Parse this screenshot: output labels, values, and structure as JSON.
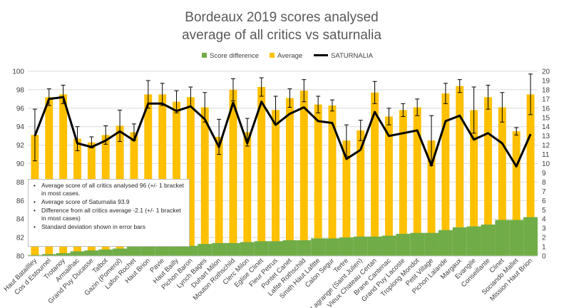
{
  "chart_data": {
    "type": "bar",
    "title_lines": [
      "Bordeaux 2019 scores analysed",
      "average of all critics vs saturnalia"
    ],
    "categories": [
      "Haut Bataillley",
      "Cos d Estournel",
      "Trotanoy",
      "Armailhac",
      "Grand Puy Ducasse",
      "Talbot",
      "Gazin (Pomerol)",
      "Lafon Rochet",
      "Haut Brion",
      "Pavie",
      "Haut Bailly",
      "Pichon Baron",
      "Lynch Bages",
      "Duhart Milon",
      "Mouton Rothschild",
      "Clerc Milon",
      "Eglise Clinet",
      "Fleur Petrus",
      "Pontet Canet",
      "Lafite Rothschild",
      "Smith Haut Lafitte",
      "Calon Segur",
      "Tertre",
      "Lagrange (Saint Julien)",
      "Vieux Chateau Certan",
      "Brane Cantenac",
      "Grand Puy Lacoste",
      "Troplong Mondot",
      "Petit Village",
      "Pichon Lalande",
      "Margaux",
      "Evangile",
      "Conseillante",
      "Clinet",
      "Sociando Mallet",
      "Mission Haut Brion"
    ],
    "series": [
      {
        "name": "Score difference",
        "axis": "right",
        "color": "#70AD47",
        "values": [
          0.1,
          0.2,
          0.3,
          0.5,
          0.6,
          0.7,
          0.8,
          1.0,
          1.0,
          1.0,
          1.1,
          1.1,
          1.3,
          1.4,
          1.4,
          1.5,
          1.6,
          1.6,
          1.7,
          1.7,
          1.9,
          1.9,
          2.0,
          2.1,
          2.1,
          2.2,
          2.4,
          2.5,
          2.5,
          2.8,
          3.1,
          3.2,
          3.4,
          3.9,
          3.9,
          4.2
        ]
      },
      {
        "name": "Average",
        "axis": "left",
        "color": "#FFC000",
        "values": [
          93.1,
          97.2,
          97.5,
          92.7,
          92.3,
          93.1,
          94.1,
          93.4,
          97.5,
          97.5,
          96.7,
          97.2,
          96.1,
          92.9,
          98.0,
          93.4,
          98.3,
          95.8,
          97.1,
          97.9,
          96.4,
          96.3,
          92.5,
          93.6,
          97.7,
          95.1,
          95.8,
          96.1,
          92.5,
          97.6,
          98.4,
          95.8,
          97.2,
          96.1,
          93.5,
          97.5
        ],
        "error": [
          2.8,
          0.9,
          1.0,
          1.3,
          0.6,
          1.0,
          1.7,
          0.9,
          1.5,
          1.2,
          1.2,
          1.1,
          1.6,
          1.9,
          1.2,
          1.5,
          1.0,
          1.5,
          1.0,
          1.2,
          0.9,
          0.6,
          1.7,
          1.1,
          1.2,
          0.9,
          0.7,
          0.9,
          2.7,
          1.1,
          0.7,
          2.5,
          1.3,
          1.6,
          0.4,
          2.2
        ]
      },
      {
        "name": "SATURNALIA",
        "axis": "right",
        "color": "#000000",
        "values": [
          13.0,
          17.0,
          17.2,
          12.2,
          11.8,
          12.5,
          13.5,
          12.5,
          16.5,
          16.5,
          15.7,
          16.2,
          14.8,
          11.8,
          16.6,
          12.2,
          16.7,
          14.2,
          15.4,
          16.1,
          14.6,
          14.4,
          10.5,
          11.5,
          15.6,
          13.0,
          13.3,
          13.6,
          9.8,
          14.6,
          15.2,
          12.6,
          13.3,
          12.2,
          9.7,
          13.2
        ]
      }
    ],
    "y_left": {
      "min": 80,
      "max": 100,
      "ticks": [
        80,
        82,
        84,
        86,
        88,
        90,
        92,
        94,
        96,
        98,
        100
      ]
    },
    "y_right": {
      "min": 0,
      "max": 20,
      "ticks": [
        0,
        1,
        2,
        3,
        4,
        5,
        6,
        7,
        8,
        9,
        10,
        11,
        12,
        13,
        14,
        15,
        16,
        17,
        18,
        19,
        20
      ]
    },
    "grid": true,
    "legend_position": "top",
    "notes": [
      "Average score of all critics analysed 96 (+/- 1 bracket in most cases.",
      "Average score of Saturnalia 93.9",
      "Difference from all critics average -2.1 (+/- 1 bracket in most cases)",
      "Standard deviation shown in error bars"
    ]
  }
}
